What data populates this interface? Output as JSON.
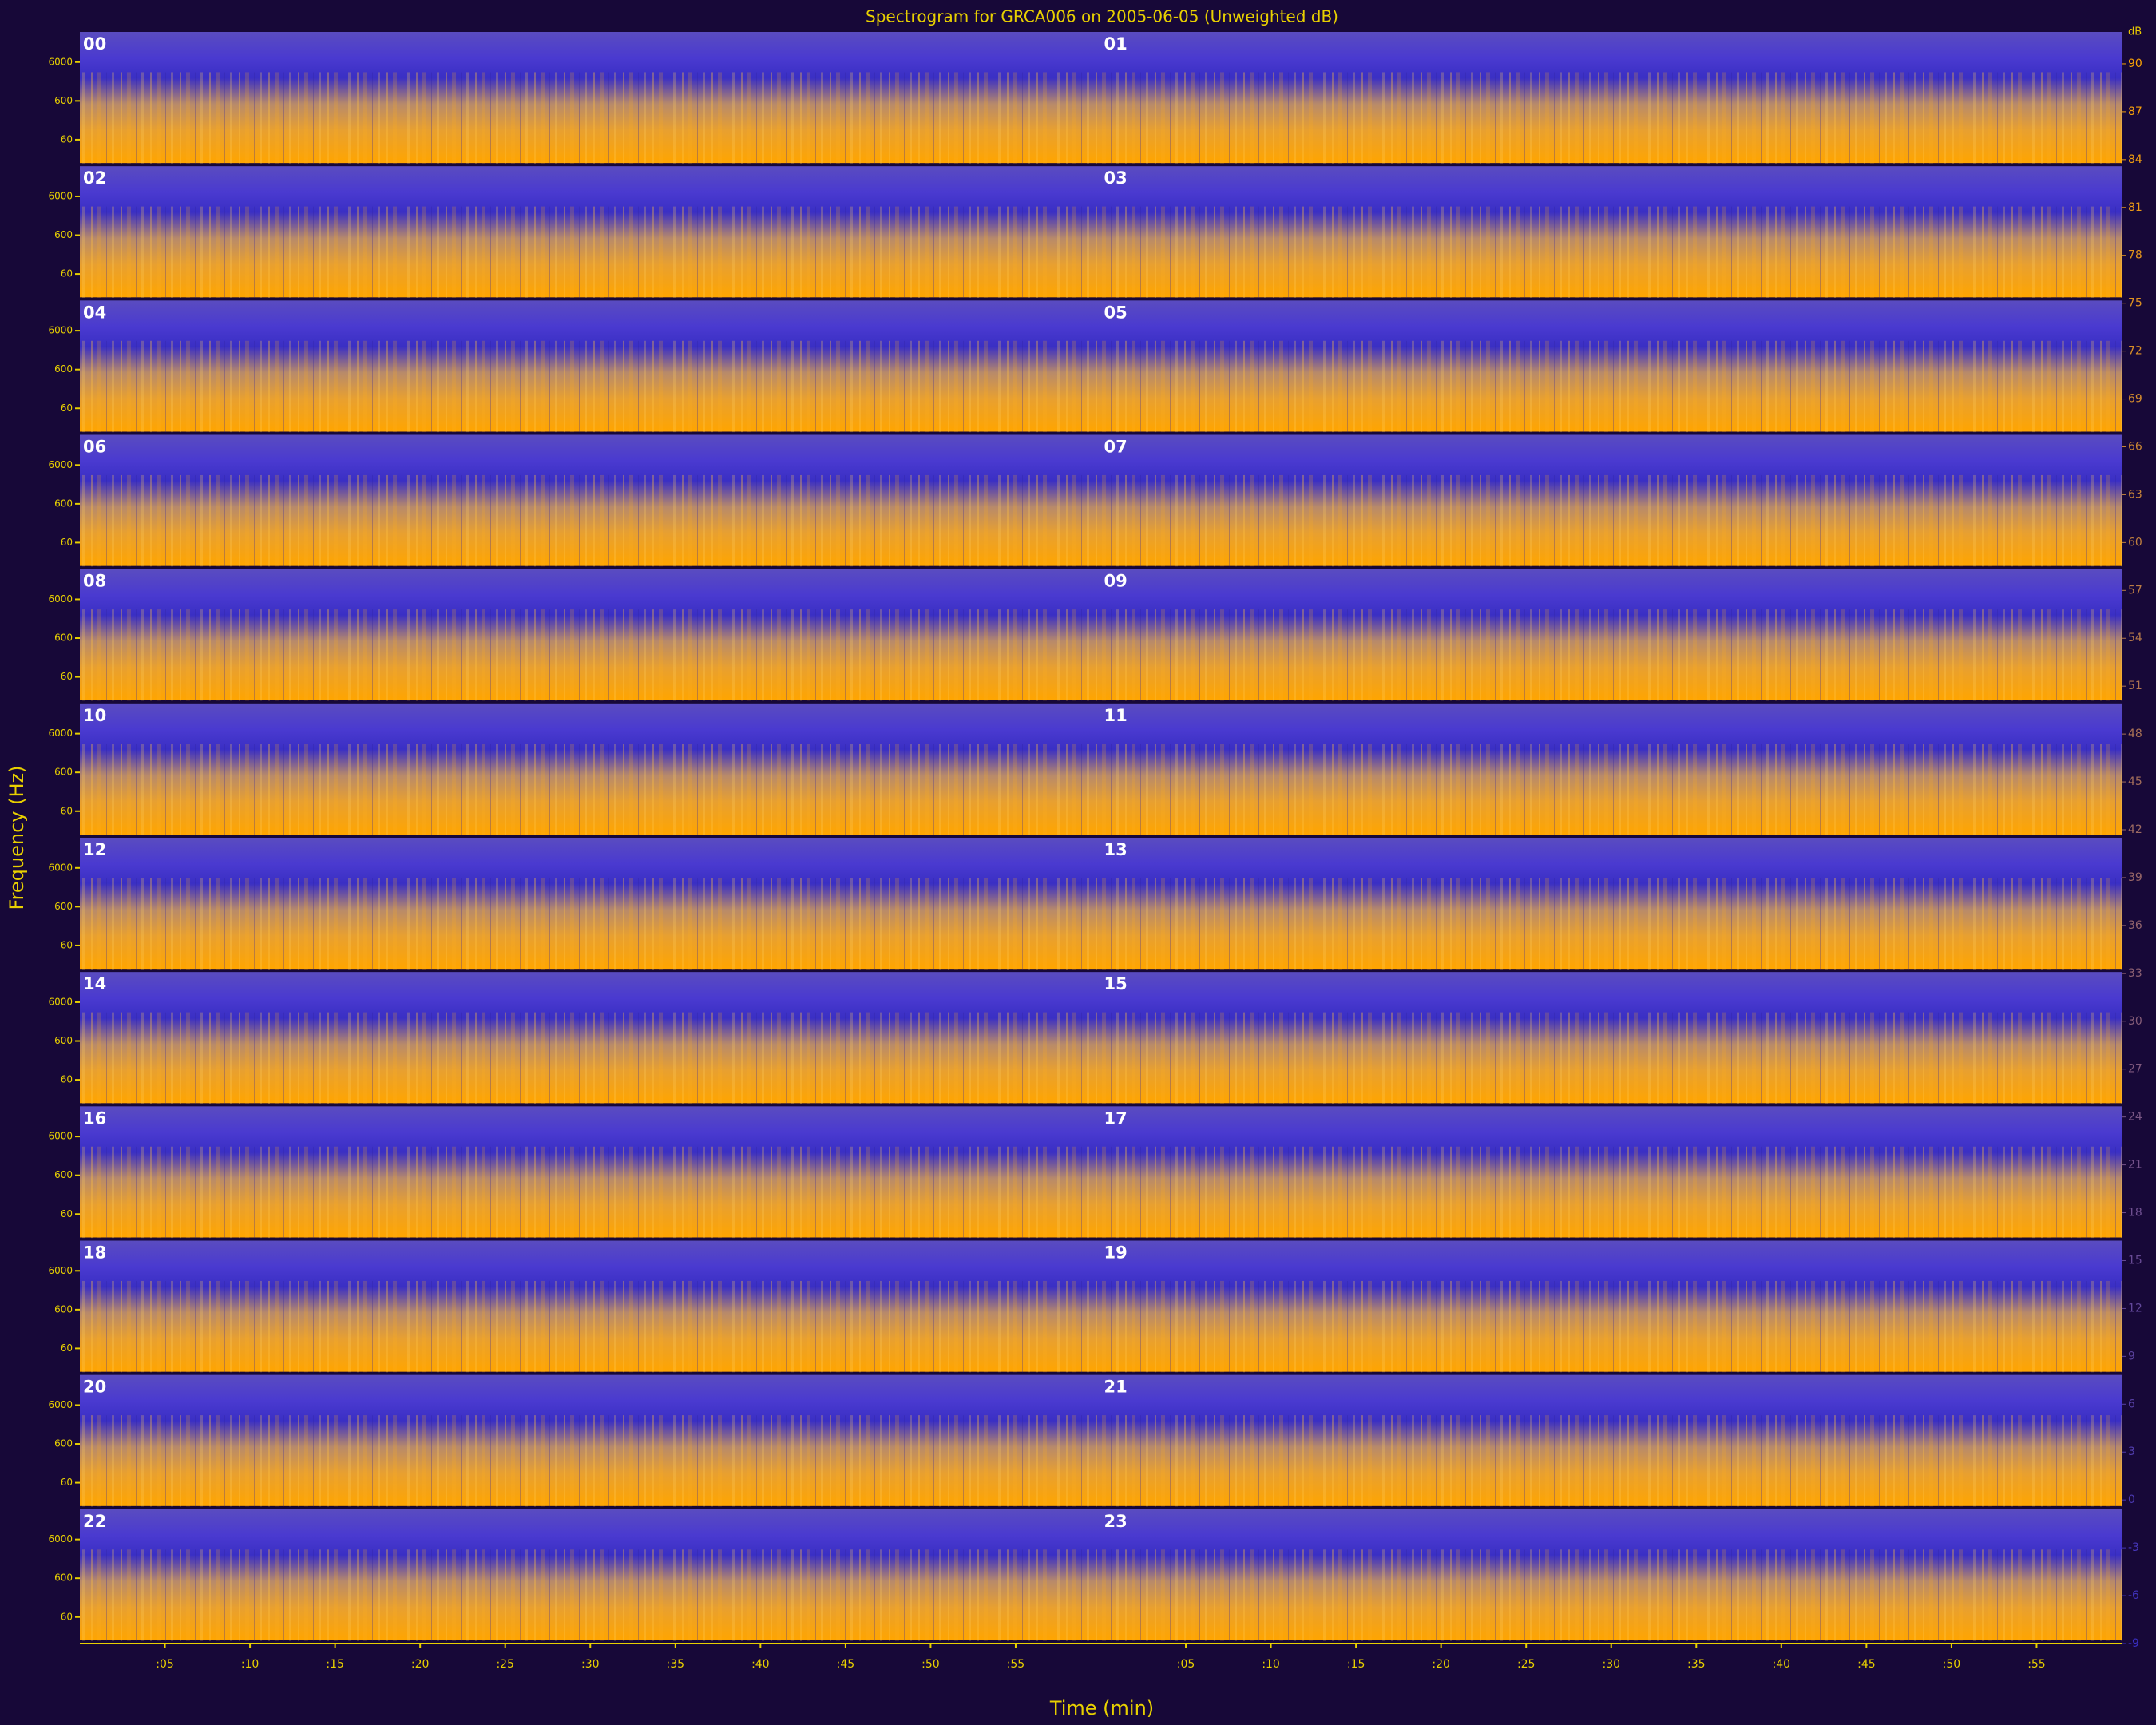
{
  "chart_data": {
    "type": "spectrogram",
    "title": "Spectrogram for GRCA006 on 2005-06-05 (Unweighted dB)",
    "xlabel": "Time (min)",
    "ylabel": "Frequency (Hz)",
    "panels": [
      "00",
      "01",
      "02",
      "03",
      "04",
      "05",
      "06",
      "07",
      "08",
      "09",
      "10",
      "11",
      "12",
      "13",
      "14",
      "15",
      "16",
      "17",
      "18",
      "19",
      "20",
      "21",
      "22",
      "23"
    ],
    "xlim": [
      0,
      60
    ],
    "xticks": [
      {
        "value": 5,
        "label": ":05"
      },
      {
        "value": 10,
        "label": ":10"
      },
      {
        "value": 15,
        "label": ":15"
      },
      {
        "value": 20,
        "label": ":20"
      },
      {
        "value": 25,
        "label": ":25"
      },
      {
        "value": 30,
        "label": ":30"
      },
      {
        "value": 35,
        "label": ":35"
      },
      {
        "value": 40,
        "label": ":40"
      },
      {
        "value": 45,
        "label": ":45"
      },
      {
        "value": 50,
        "label": ":50"
      },
      {
        "value": 55,
        "label": ":55"
      }
    ],
    "ylim": [
      15,
      36000
    ],
    "log_y": true,
    "yticks": [
      60,
      600,
      6000
    ],
    "colorbar_label": "dB",
    "clim": [
      -9,
      92
    ],
    "cticks": [
      90,
      87,
      84,
      81,
      78,
      75,
      72,
      69,
      66,
      63,
      60,
      57,
      54,
      51,
      48,
      45,
      42,
      39,
      36,
      33,
      30,
      27,
      24,
      21,
      18,
      15,
      12,
      9,
      6,
      3,
      0,
      -3,
      -6,
      -9
    ],
    "colormap": [
      "#3a2fc4",
      "#ffa500"
    ]
  }
}
